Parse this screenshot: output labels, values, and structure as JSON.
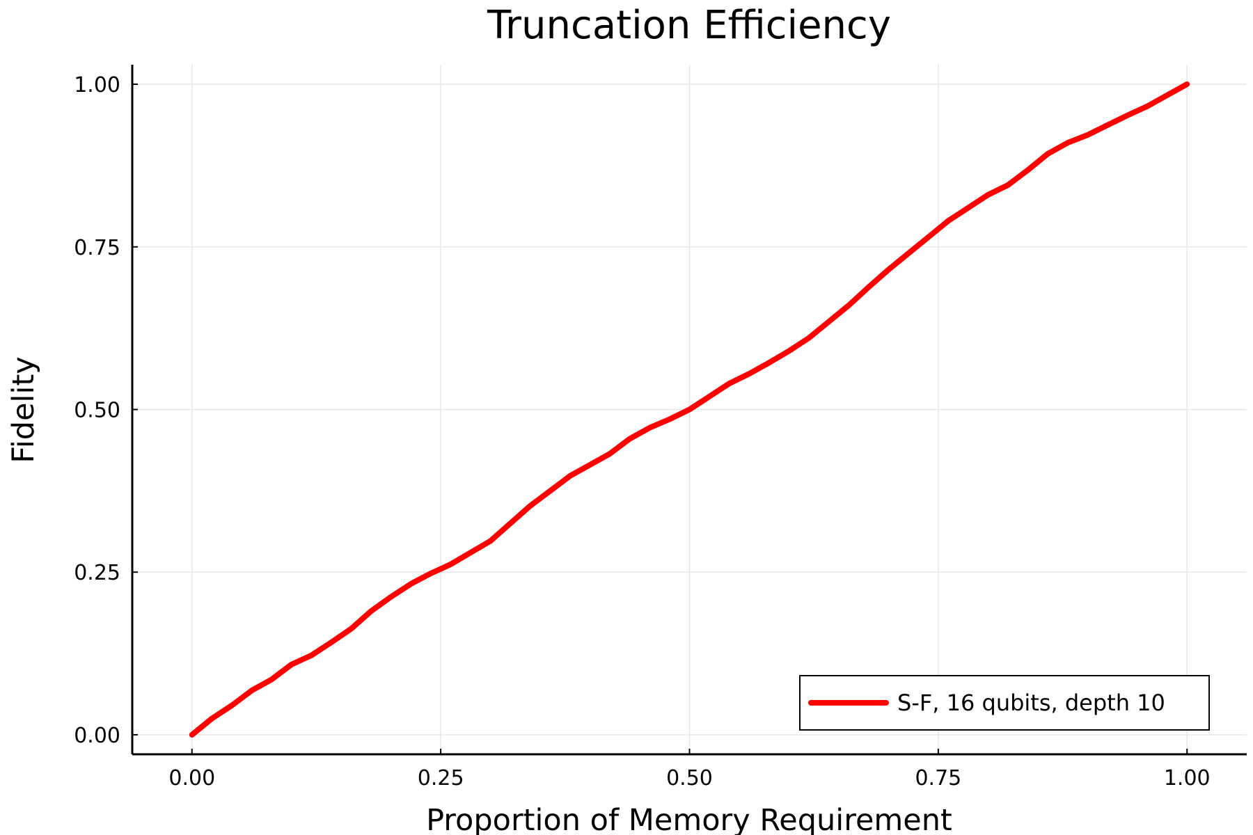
{
  "chart_data": {
    "type": "line",
    "title": "Truncation Efficiency",
    "xlabel": "Proportion of Memory Requirement",
    "ylabel": "Fidelity",
    "xlim": [
      -0.06,
      1.06
    ],
    "ylim": [
      -0.03,
      1.03
    ],
    "xticks": [
      0.0,
      0.25,
      0.5,
      0.75,
      1.0
    ],
    "yticks": [
      0.0,
      0.25,
      0.5,
      0.75,
      1.0
    ],
    "xtick_labels": [
      "0.00",
      "0.25",
      "0.50",
      "0.75",
      "1.00"
    ],
    "ytick_labels": [
      "0.00",
      "0.25",
      "0.50",
      "0.75",
      "1.00"
    ],
    "grid": true,
    "legend_position": "bottom-right",
    "series": [
      {
        "name": "S-F, 16 qubits, depth 10",
        "color": "#ff0000",
        "x": [
          0.0,
          0.02,
          0.04,
          0.06,
          0.08,
          0.1,
          0.12,
          0.14,
          0.16,
          0.18,
          0.2,
          0.22,
          0.24,
          0.26,
          0.28,
          0.3,
          0.32,
          0.34,
          0.36,
          0.38,
          0.4,
          0.42,
          0.44,
          0.46,
          0.48,
          0.5,
          0.52,
          0.54,
          0.56,
          0.58,
          0.6,
          0.62,
          0.64,
          0.66,
          0.68,
          0.7,
          0.72,
          0.74,
          0.76,
          0.78,
          0.8,
          0.82,
          0.84,
          0.86,
          0.88,
          0.9,
          0.92,
          0.94,
          0.96,
          0.98,
          1.0
        ],
        "y": [
          0.0,
          0.025,
          0.045,
          0.068,
          0.085,
          0.108,
          0.122,
          0.142,
          0.163,
          0.19,
          0.212,
          0.232,
          0.248,
          0.262,
          0.28,
          0.298,
          0.325,
          0.352,
          0.375,
          0.398,
          0.415,
          0.432,
          0.455,
          0.472,
          0.485,
          0.5,
          0.52,
          0.54,
          0.555,
          0.572,
          0.59,
          0.61,
          0.635,
          0.66,
          0.688,
          0.715,
          0.74,
          0.765,
          0.79,
          0.81,
          0.83,
          0.845,
          0.868,
          0.893,
          0.91,
          0.922,
          0.937,
          0.952,
          0.966,
          0.983,
          1.0
        ]
      }
    ]
  }
}
